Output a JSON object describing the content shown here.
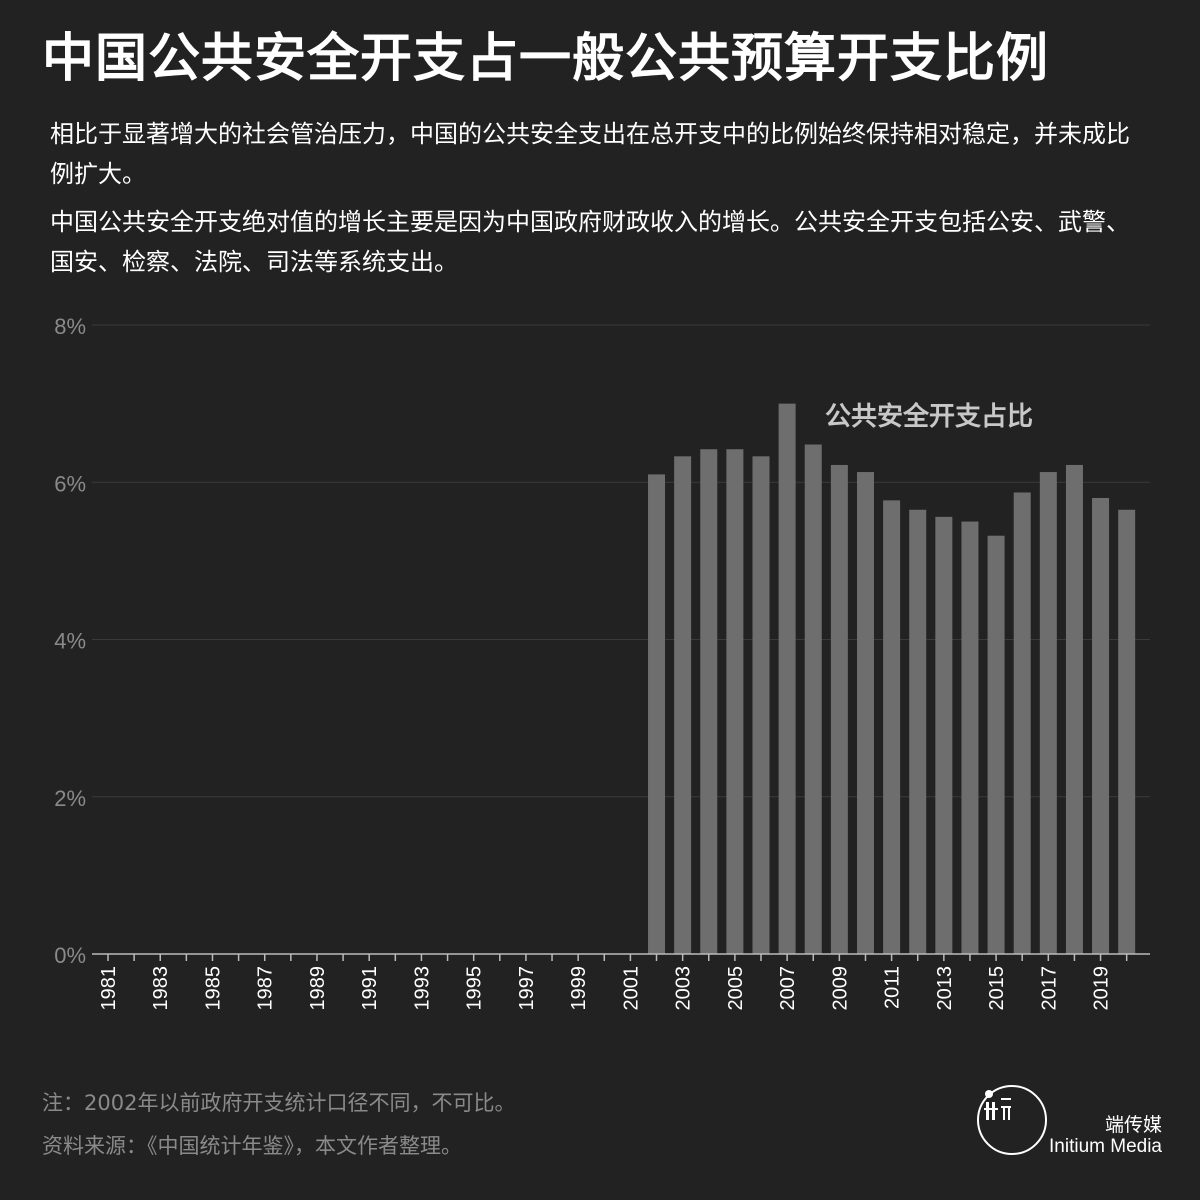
{
  "title": "中国公共安全开支占一般公共预算开支比例",
  "paragraphs": [
    "相比于显著增大的社会管治压力，中国的公共安全支出在总开支中的比例始终保持相对稳定，并未成比例扩大。",
    "中国公共安全开支绝对值的增长主要是因为中国政府财政收入的增长。公共安全开支包括公安、武警、国安、检察、法院、司法等系统支出。"
  ],
  "chart_data": {
    "type": "bar",
    "series": [
      {
        "name": "公共安全开支占比",
        "color": "#6e6e6e"
      }
    ],
    "categories": [
      1981,
      1982,
      1983,
      1984,
      1985,
      1986,
      1987,
      1988,
      1989,
      1990,
      1991,
      1992,
      1993,
      1994,
      1995,
      1996,
      1997,
      1998,
      1999,
      2000,
      2001,
      2002,
      2003,
      2004,
      2005,
      2006,
      2007,
      2008,
      2009,
      2010,
      2011,
      2012,
      2013,
      2014,
      2015,
      2016,
      2017,
      2018,
      2019,
      2020
    ],
    "values": [
      null,
      null,
      null,
      null,
      null,
      null,
      null,
      null,
      null,
      null,
      null,
      null,
      null,
      null,
      null,
      null,
      null,
      null,
      null,
      null,
      null,
      6.1,
      6.33,
      6.42,
      6.42,
      6.33,
      7.0,
      6.48,
      6.22,
      6.13,
      5.77,
      5.65,
      5.56,
      5.5,
      5.32,
      5.87,
      6.13,
      6.22,
      5.8,
      5.65
    ],
    "x_tick_labels": [
      "1981",
      "1983",
      "1985",
      "1987",
      "1989",
      "1991",
      "1993",
      "1995",
      "1997",
      "1999",
      "2001",
      "2003",
      "2005",
      "2007",
      "2009",
      "2011",
      "2013",
      "2015",
      "2017",
      "2019"
    ],
    "y_ticks": [
      0,
      2,
      4,
      6,
      8
    ],
    "y_tick_labels": [
      "0%",
      "2%",
      "4%",
      "6%",
      "8%"
    ],
    "ylim": [
      0,
      8
    ],
    "grid": true,
    "legend": "annotation near top of bars"
  },
  "footer": {
    "note": "注：2002年以前政府开支统计口径不同，不可比。",
    "source": "资料来源：《中国统计年鉴》，本文作者整理。"
  },
  "brand": {
    "logo_icon": "initium-logo-icon",
    "name_cn": "端传媒",
    "name_en": "Initium Media"
  },
  "colors": {
    "background": "#222222",
    "bar": "#6e6e6e",
    "gridline": "#3a3a3a",
    "axis_label": "#8a8a8a",
    "tick_label": "#ffffff"
  }
}
